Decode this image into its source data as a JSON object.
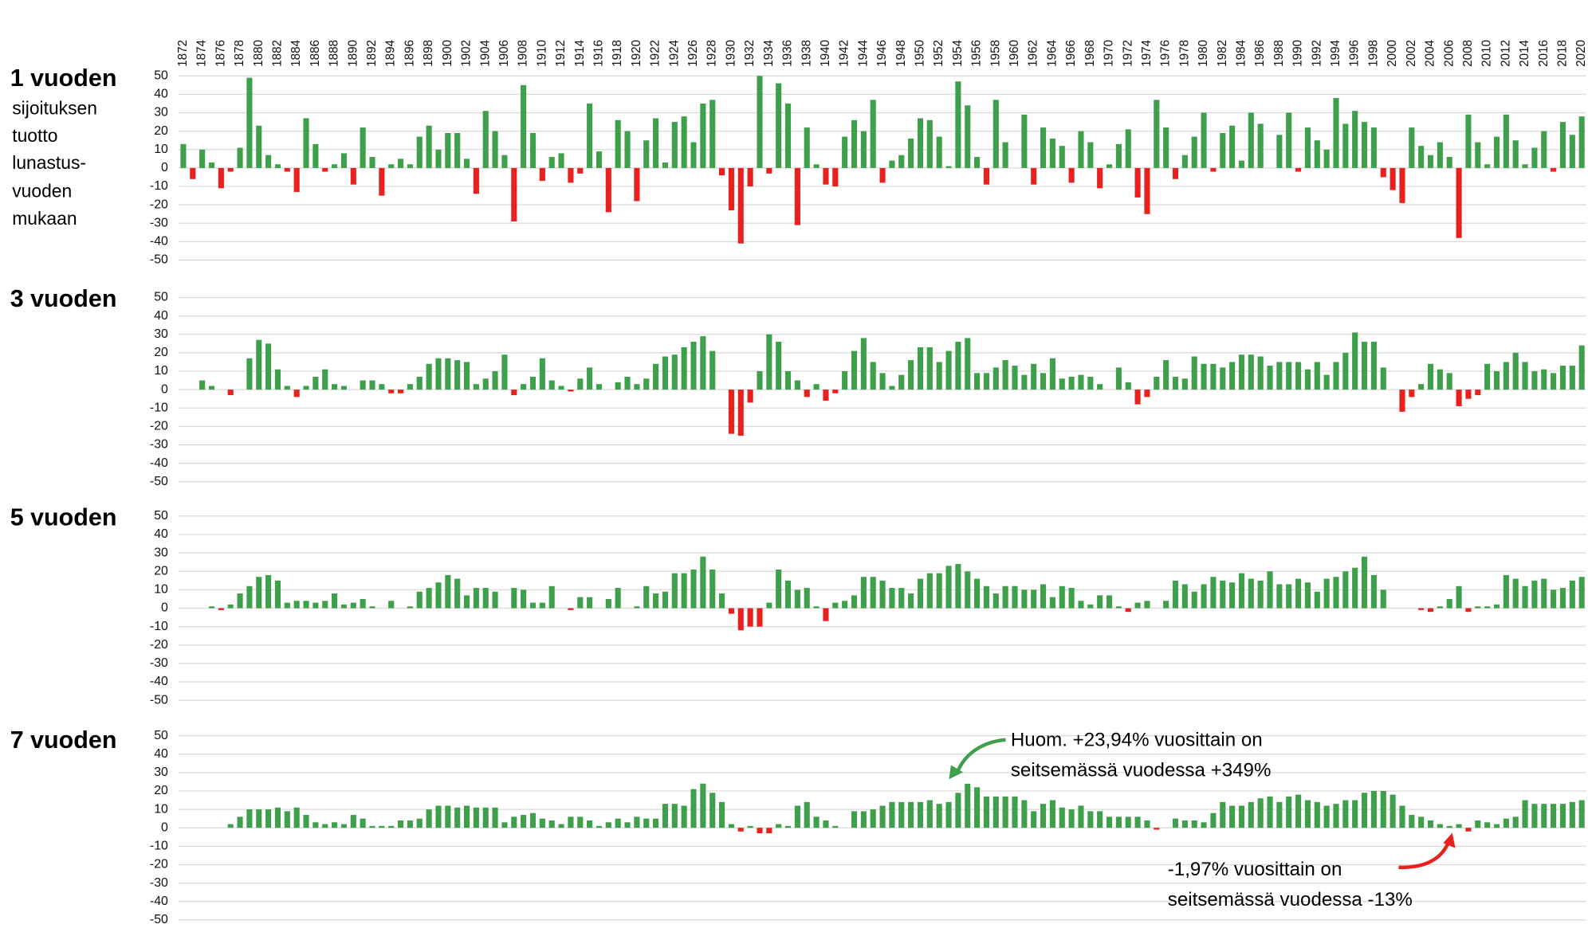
{
  "chart_data": [
    {
      "type": "bar",
      "title": "1 vuoden",
      "subtitle": [
        "sijoituksen",
        "tuotto",
        "lunastus-",
        "vuoden",
        "mukaan"
      ],
      "categories": [
        "1872",
        null,
        "1874",
        null,
        "1876",
        null,
        "1878",
        null,
        "1880",
        null,
        "1882",
        null,
        "1884",
        null,
        "1886",
        null,
        "1888",
        null,
        "1890",
        null,
        "1892",
        null,
        "1894",
        null,
        "1896",
        null,
        "1898",
        null,
        "1900",
        null,
        "1902",
        null,
        "1904",
        null,
        "1906",
        null,
        "1908",
        null,
        "1910",
        null,
        "1912",
        null,
        "1914",
        null,
        "1916",
        null,
        "1918",
        null,
        "1920",
        null,
        "1922",
        null,
        "1924",
        null,
        "1926",
        null,
        "1928",
        null,
        "1930",
        null,
        "1932",
        null,
        "1934",
        null,
        "1936",
        null,
        "1938",
        null,
        "1940",
        null,
        "1942",
        null,
        "1944",
        null,
        "1946",
        null,
        "1948",
        null,
        "1950",
        null,
        "1952",
        null,
        "1954",
        null,
        "1956",
        null,
        "1958",
        null,
        "1960",
        null,
        "1962",
        null,
        "1964",
        null,
        "1966",
        null,
        "1968",
        null,
        "1970",
        null,
        "1972",
        null,
        "1974",
        null,
        "1976",
        null,
        "1978",
        null,
        "1980",
        null,
        "1982",
        null,
        "1984",
        null,
        "1986",
        null,
        "1988",
        null,
        "1990",
        null,
        "1992",
        null,
        "1994",
        null,
        "1996",
        null,
        "1998",
        null,
        "2000",
        null,
        "2002",
        null,
        "2004",
        null,
        "2006",
        null,
        "2008",
        null,
        "2010",
        null,
        "2012",
        null,
        "2014",
        null,
        "2016",
        null,
        "2018",
        null,
        "2020"
      ],
      "values": [
        13,
        -6,
        10,
        3,
        -11,
        -2,
        11,
        49,
        23,
        7,
        2,
        -2,
        -13,
        27,
        13,
        -2,
        2,
        8,
        -9,
        22,
        6,
        -15,
        2,
        5,
        2,
        17,
        23,
        10,
        19,
        19,
        5,
        -14,
        31,
        20,
        7,
        -29,
        45,
        19,
        -7,
        6,
        8,
        -8,
        -3,
        35,
        9,
        -24,
        26,
        20,
        -18,
        15,
        27,
        3,
        25,
        28,
        14,
        35,
        37,
        -4,
        -23,
        -41,
        -10,
        50,
        -3,
        46,
        35,
        -31,
        22,
        2,
        -9,
        -10,
        17,
        26,
        20,
        37,
        -8,
        4,
        7,
        16,
        27,
        26,
        17,
        1,
        47,
        34,
        6,
        -9,
        37,
        14,
        0,
        29,
        -9,
        22,
        16,
        12,
        -8,
        20,
        14,
        -11,
        2,
        13,
        21,
        -16,
        -25,
        37,
        22,
        -6,
        7,
        17,
        30,
        -2,
        19,
        23,
        4,
        30,
        24,
        0,
        18,
        30,
        -2,
        22,
        15,
        10,
        38,
        24,
        31,
        25,
        22,
        -5,
        -12,
        -19,
        22,
        12,
        7,
        14,
        6,
        -38,
        29,
        14,
        2,
        17,
        29,
        15,
        2,
        11,
        20,
        -2,
        25,
        18,
        28
      ],
      "positive_color": "#3ea04a",
      "negative_color": "#e8211e",
      "ylim": [
        -50,
        50
      ],
      "yticks": [
        50,
        40,
        30,
        20,
        10,
        0,
        -10,
        -20,
        -30,
        -40,
        -50
      ],
      "grid": true
    },
    {
      "type": "bar",
      "title": "3 vuoden",
      "values": [
        0,
        0,
        5,
        2,
        0,
        -3,
        0,
        17,
        27,
        25,
        11,
        2,
        -4,
        2,
        7,
        11,
        3,
        2,
        0,
        5,
        5,
        3,
        -2,
        -2,
        3,
        7,
        14,
        17,
        17,
        16,
        15,
        3,
        6,
        10,
        19,
        -3,
        3,
        7,
        17,
        5,
        2,
        -1,
        6,
        12,
        3,
        0,
        4,
        7,
        3,
        6,
        14,
        18,
        19,
        23,
        26,
        29,
        21,
        0,
        -24,
        -25,
        -7,
        10,
        30,
        26,
        10,
        5,
        -4,
        3,
        -6,
        -2,
        10,
        21,
        28,
        15,
        9,
        2,
        8,
        16,
        23,
        23,
        15,
        21,
        26,
        28,
        9,
        9,
        12,
        16,
        13,
        8,
        14,
        9,
        17,
        6,
        7,
        8,
        7,
        3,
        0,
        12,
        4,
        -8,
        -4,
        7,
        16,
        7,
        6,
        18,
        14,
        14,
        12,
        15,
        19,
        19,
        18,
        13,
        15,
        15,
        15,
        11,
        15,
        8,
        15,
        20,
        31,
        26,
        26,
        12,
        0,
        -12,
        -4,
        3,
        14,
        11,
        9,
        -9,
        -5,
        -3,
        14,
        10,
        15,
        20,
        15,
        10,
        11,
        9,
        13,
        13,
        24
      ],
      "positive_color": "#3ea04a",
      "negative_color": "#e8211e",
      "ylim": [
        -50,
        50
      ],
      "yticks": [
        50,
        40,
        30,
        20,
        10,
        0,
        -10,
        -20,
        -30,
        -40,
        -50
      ],
      "grid": true
    },
    {
      "type": "bar",
      "title": "5 vuoden",
      "values": [
        0,
        0,
        0,
        1,
        -1,
        2,
        8,
        12,
        17,
        18,
        15,
        3,
        4,
        4,
        3,
        4,
        8,
        2,
        3,
        5,
        1,
        0,
        4,
        0,
        1,
        9,
        11,
        14,
        18,
        16,
        7,
        11,
        11,
        9,
        0,
        11,
        10,
        3,
        3,
        12,
        0,
        -1,
        6,
        6,
        0,
        5,
        11,
        0,
        1,
        12,
        8,
        9,
        19,
        19,
        21,
        28,
        21,
        8,
        -3,
        -12,
        -10,
        -10,
        3,
        21,
        15,
        10,
        11,
        1,
        -7,
        3,
        4,
        7,
        17,
        17,
        15,
        11,
        11,
        8,
        16,
        19,
        19,
        23,
        24,
        20,
        16,
        12,
        8,
        12,
        12,
        10,
        10,
        13,
        6,
        12,
        11,
        4,
        2,
        7,
        7,
        1,
        -2,
        3,
        4,
        0,
        4,
        15,
        13,
        9,
        13,
        17,
        15,
        14,
        19,
        16,
        15,
        20,
        13,
        13,
        16,
        14,
        9,
        16,
        17,
        20,
        22,
        28,
        18,
        10,
        0,
        0,
        0,
        -1,
        -2,
        1,
        5,
        12,
        -2,
        1,
        1,
        2,
        18,
        16,
        12,
        15,
        16,
        10,
        11,
        15,
        17
      ],
      "positive_color": "#3ea04a",
      "negative_color": "#e8211e",
      "ylim": [
        -50,
        50
      ],
      "yticks": [
        50,
        40,
        30,
        20,
        10,
        0,
        -10,
        -20,
        -30,
        -40,
        -50
      ],
      "grid": true
    },
    {
      "type": "bar",
      "title": "7 vuoden",
      "values": [
        0,
        0,
        0,
        0,
        0,
        2,
        6,
        10,
        10,
        10,
        11,
        9,
        11,
        7,
        3,
        2,
        3,
        2,
        7,
        5,
        1,
        1,
        1,
        4,
        4,
        5,
        10,
        12,
        12,
        11,
        12,
        11,
        11,
        11,
        3,
        6,
        7,
        8,
        5,
        4,
        2,
        6,
        6,
        4,
        1,
        3,
        5,
        3,
        6,
        5,
        5,
        13,
        13,
        12,
        21,
        24,
        19,
        14,
        2,
        -2,
        1,
        -3,
        -3,
        2,
        1,
        12,
        14,
        6,
        4,
        1,
        0,
        9,
        9,
        10,
        12,
        14,
        14,
        14,
        14,
        15,
        13,
        14,
        19,
        23.94,
        22,
        17,
        17,
        17,
        17,
        15,
        9,
        13,
        15,
        11,
        10,
        12,
        9,
        9,
        6,
        6,
        6,
        6,
        4,
        -1,
        0,
        5,
        4,
        4,
        3,
        8,
        14,
        12,
        12,
        14,
        16,
        17,
        14,
        17,
        18,
        15,
        14,
        12,
        13,
        15,
        15,
        19,
        20,
        20,
        18,
        12,
        7,
        6,
        4,
        2,
        1,
        2,
        -1.97,
        4,
        3,
        2,
        5,
        6,
        15,
        13,
        13,
        13,
        13,
        14,
        15
      ],
      "positive_color": "#3ea04a",
      "negative_color": "#e8211e",
      "ylim": [
        -50,
        50
      ],
      "yticks": [
        50,
        40,
        30,
        20,
        10,
        0,
        -10,
        -20,
        -30,
        -40,
        -50
      ],
      "grid": true,
      "annotations": [
        [
          "Huom. +23,94% vuosittain on",
          "seitsemässä vuodessa +349%"
        ],
        [
          "-1,97% vuosittain on",
          "seitsemässä vuodessa -13%"
        ]
      ]
    }
  ]
}
